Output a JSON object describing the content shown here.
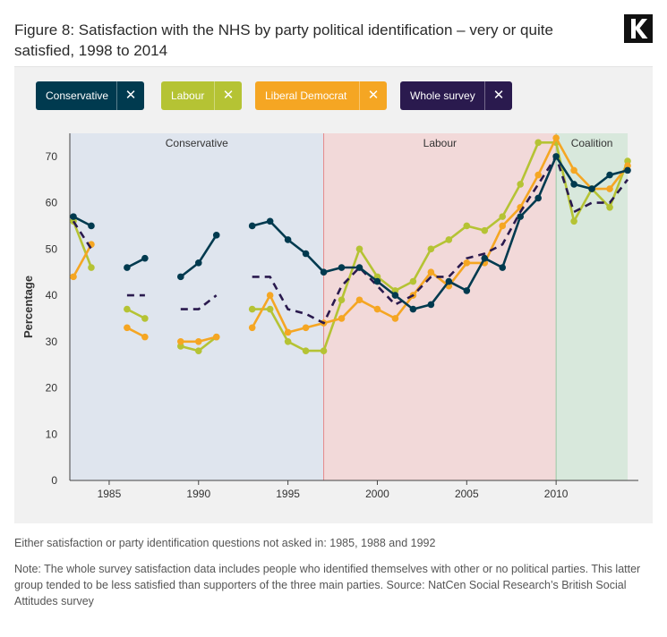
{
  "title": "Figure 8: Satisfaction with the NHS by party political identification – very or quite satisfied, 1998 to 2014",
  "logo": {
    "letter": "K"
  },
  "legend": [
    {
      "label": "Conservative",
      "color": "#003a4f",
      "close": "✕"
    },
    {
      "label": "Labour",
      "color": "#b5c334",
      "close": "✕"
    },
    {
      "label": "Liberal Democrat",
      "color": "#f5a623",
      "close": "✕"
    },
    {
      "label": "Whole survey",
      "color": "#2a1a4e",
      "close": "✕"
    }
  ],
  "chart_data": {
    "type": "line",
    "ylabel": "Percentage",
    "ylim": [
      0,
      75
    ],
    "yticks": [
      0,
      10,
      20,
      30,
      40,
      50,
      60,
      70
    ],
    "xlim": [
      1982.8,
      2014.6
    ],
    "xticks": [
      1985,
      1990,
      1995,
      2000,
      2005,
      2010
    ],
    "regions": [
      {
        "label": "Conservative",
        "from": 1982.8,
        "to": 1997,
        "color": "#dfe5ee"
      },
      {
        "label": "Labour",
        "from": 1997,
        "to": 2010,
        "color": "#f2d9d9"
      },
      {
        "label": "Coalition",
        "from": 2010,
        "to": 2014,
        "color": "#d8e8dc"
      }
    ],
    "series": [
      {
        "name": "Labour",
        "color": "#b5c334",
        "style": "solid",
        "markers": true,
        "segments": [
          {
            "x": [
              1983,
              1984
            ],
            "y": [
              56,
              46
            ]
          },
          {
            "x": [
              1986,
              1987
            ],
            "y": [
              37,
              35
            ]
          },
          {
            "x": [
              1989,
              1990,
              1991
            ],
            "y": [
              29,
              28,
              31
            ]
          },
          {
            "x": [
              1993,
              1994,
              1995,
              1996,
              1997,
              1998,
              1999,
              2000,
              2001,
              2002,
              2003,
              2004,
              2005,
              2006,
              2007,
              2008,
              2009,
              2010,
              2011,
              2012,
              2013,
              2014
            ],
            "y": [
              37,
              37,
              30,
              28,
              28,
              39,
              50,
              44,
              41,
              43,
              50,
              52,
              55,
              54,
              57,
              64,
              73,
              73,
              56,
              63,
              59,
              69
            ]
          }
        ]
      },
      {
        "name": "Liberal Democrat",
        "color": "#f5a623",
        "style": "solid",
        "markers": true,
        "segments": [
          {
            "x": [
              1983,
              1984
            ],
            "y": [
              44,
              51
            ]
          },
          {
            "x": [
              1986,
              1987
            ],
            "y": [
              33,
              31
            ]
          },
          {
            "x": [
              1989,
              1990,
              1991
            ],
            "y": [
              30,
              30,
              31
            ]
          },
          {
            "x": [
              1993,
              1994,
              1995,
              1996,
              1997,
              1998,
              1999,
              2000,
              2001,
              2002,
              2003,
              2004,
              2005,
              2006,
              2007,
              2008,
              2009,
              2010,
              2011,
              2012,
              2013,
              2014
            ],
            "y": [
              33,
              40,
              32,
              33,
              34,
              35,
              39,
              37,
              35,
              40,
              45,
              42,
              47,
              47,
              55,
              59,
              66,
              74,
              67,
              63,
              63,
              68
            ]
          }
        ]
      },
      {
        "name": "Whole survey",
        "color": "#2a1a4e",
        "style": "dashed",
        "markers": false,
        "segments": [
          {
            "x": [
              1983,
              1984
            ],
            "y": [
              56,
              50
            ]
          },
          {
            "x": [
              1986,
              1987
            ],
            "y": [
              40,
              40
            ]
          },
          {
            "x": [
              1989,
              1990,
              1991
            ],
            "y": [
              37,
              37,
              40
            ]
          },
          {
            "x": [
              1993,
              1994,
              1995,
              1996,
              1997,
              1998,
              1999,
              2000,
              2001,
              2002,
              2003,
              2004,
              2005,
              2006,
              2007,
              2008,
              2009,
              2010,
              2011,
              2012,
              2013,
              2014
            ],
            "y": [
              44,
              44,
              37,
              36,
              34,
              42,
              46,
              42,
              38,
              40,
              44,
              44,
              48,
              49,
              51,
              58,
              64,
              70,
              58,
              60,
              60,
              65
            ]
          }
        ]
      },
      {
        "name": "Conservative",
        "color": "#003a4f",
        "style": "solid",
        "markers": true,
        "segments": [
          {
            "x": [
              1983,
              1984
            ],
            "y": [
              57,
              55
            ]
          },
          {
            "x": [
              1986,
              1987
            ],
            "y": [
              46,
              48
            ]
          },
          {
            "x": [
              1989,
              1990,
              1991
            ],
            "y": [
              44,
              47,
              53
            ]
          },
          {
            "x": [
              1993,
              1994,
              1995,
              1996,
              1997,
              1998,
              1999,
              2000,
              2001,
              2002,
              2003,
              2004,
              2005,
              2006,
              2007,
              2008,
              2009,
              2010,
              2011,
              2012,
              2013,
              2014
            ],
            "y": [
              55,
              56,
              52,
              49,
              45,
              46,
              46,
              43,
              40,
              37,
              38,
              43,
              41,
              48,
              46,
              57,
              61,
              70,
              64,
              63,
              66,
              67
            ]
          }
        ]
      }
    ]
  },
  "notes": {
    "not_asked": "Either satisfaction or party identification questions not asked in: 1985, 1988 and 1992",
    "note": "Note: The whole survey satisfaction data includes people who identified themselves with other or no political parties. This latter group tended to be less satisfied than supporters of the three main parties. Source: NatCen Social Research’s British Social Attitudes survey"
  }
}
